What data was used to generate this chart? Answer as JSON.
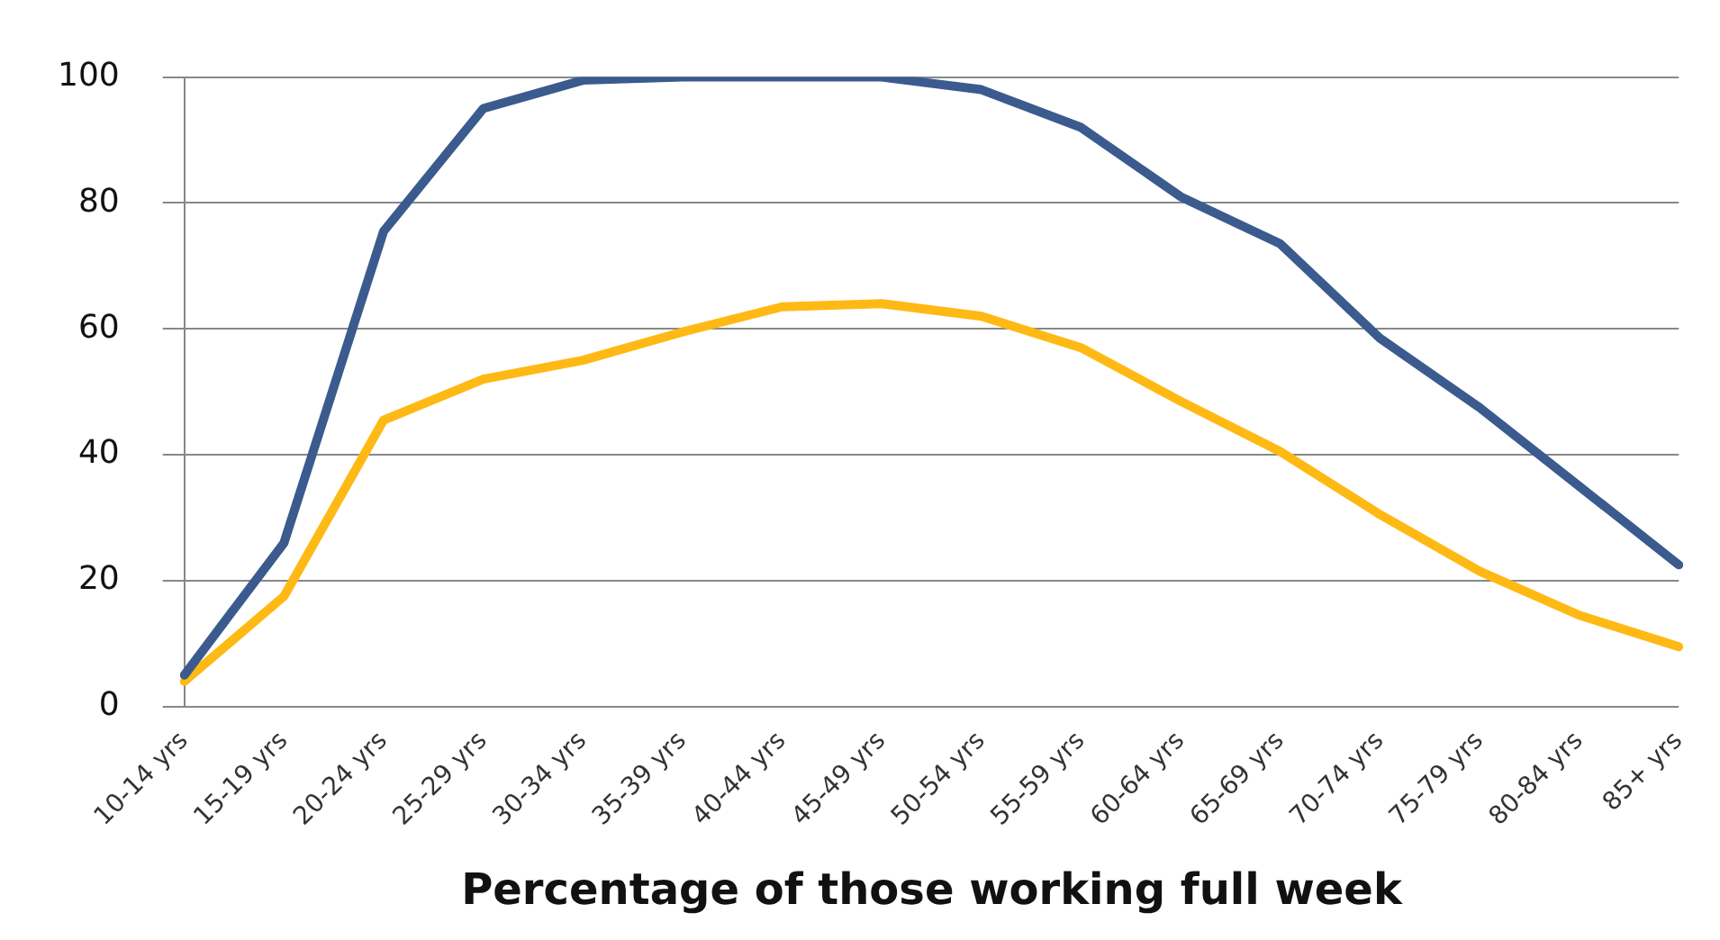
{
  "chart_data": {
    "type": "line",
    "xlabel": "Percentage of those working full week",
    "categories": [
      "10-14 yrs",
      "15-19 yrs",
      "20-24 yrs",
      "25-29 yrs",
      "30-34 yrs",
      "35-39 yrs",
      "40-44 yrs",
      "45-49 yrs",
      "50-54 yrs",
      "55-59 yrs",
      "60-64 yrs",
      "65-69 yrs",
      "70-74 yrs",
      "75-79 yrs",
      "80-84 yrs",
      "85+ yrs"
    ],
    "series": [
      {
        "color": "#3b5b8e",
        "values": [
          5,
          26,
          75.5,
          95,
          99.5,
          100,
          100,
          100,
          98,
          92,
          81,
          73.5,
          58.5,
          47.5,
          35,
          22.5
        ]
      },
      {
        "color": "#ffb914",
        "values": [
          4,
          17.5,
          45.5,
          52,
          55,
          59.5,
          63.5,
          64,
          62,
          57,
          48.5,
          40.5,
          30.5,
          21.5,
          14.5,
          9.5
        ]
      }
    ],
    "ylim": [
      0,
      100
    ],
    "yticks": [
      0,
      20,
      40,
      60,
      80,
      100
    ],
    "grid": "y",
    "legend": false,
    "marker": "none",
    "line_style": "solid"
  }
}
